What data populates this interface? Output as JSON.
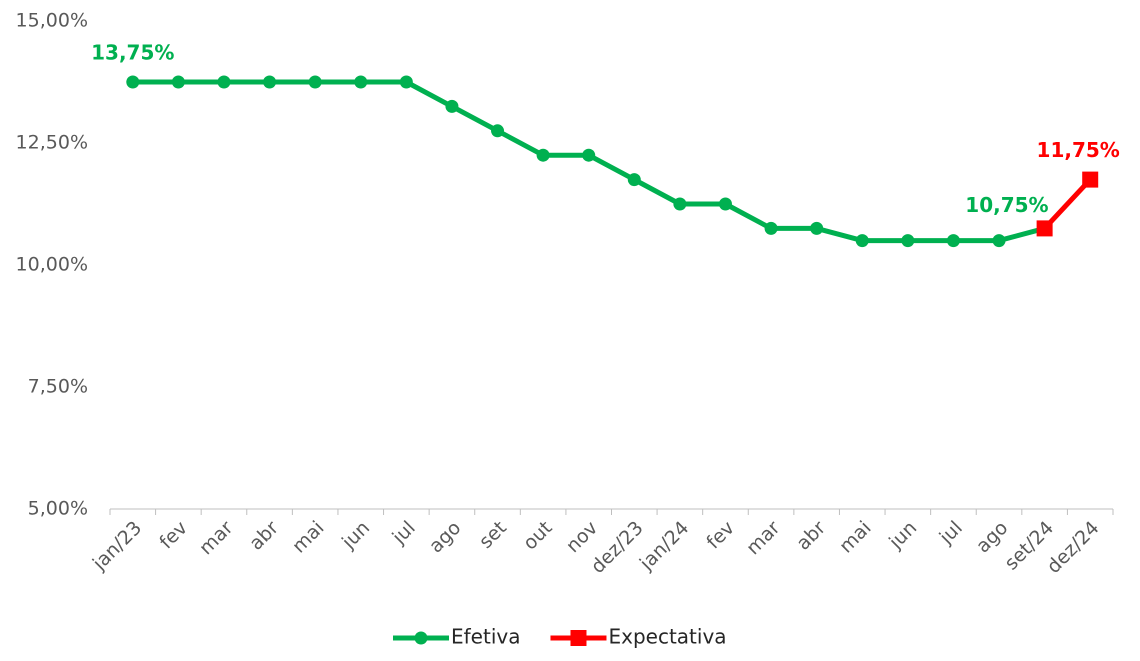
{
  "chart_data": {
    "type": "line",
    "categories": [
      "jan/23",
      "fev",
      "mar",
      "abr",
      "mai",
      "jun",
      "jul",
      "ago",
      "set",
      "out",
      "nov",
      "dez/23",
      "jan/24",
      "fev",
      "mar",
      "abr",
      "mai",
      "jun",
      "jul",
      "ago",
      "set/24",
      "dez/24"
    ],
    "series": [
      {
        "name": "Efetiva",
        "color": "#00b050",
        "marker": "circle",
        "values": [
          13.75,
          13.75,
          13.75,
          13.75,
          13.75,
          13.75,
          13.75,
          13.25,
          12.75,
          12.25,
          12.25,
          11.75,
          11.25,
          11.25,
          10.75,
          10.75,
          10.5,
          10.5,
          10.5,
          10.5,
          10.75,
          null
        ],
        "value_labels": [
          "13,75%",
          null,
          null,
          null,
          null,
          null,
          null,
          null,
          null,
          null,
          null,
          null,
          null,
          null,
          null,
          null,
          null,
          null,
          null,
          null,
          "10,75%",
          null
        ]
      },
      {
        "name": "Expectativa",
        "color": "#ff0000",
        "marker": "square",
        "values": [
          null,
          null,
          null,
          null,
          null,
          null,
          null,
          null,
          null,
          null,
          null,
          null,
          null,
          null,
          null,
          null,
          null,
          null,
          null,
          null,
          10.75,
          11.75
        ],
        "value_labels": [
          null,
          null,
          null,
          null,
          null,
          null,
          null,
          null,
          null,
          null,
          null,
          null,
          null,
          null,
          null,
          null,
          null,
          null,
          null,
          null,
          null,
          "11,75%"
        ]
      }
    ],
    "ylim": [
      5,
      15
    ],
    "yticks": [
      {
        "value": 5,
        "label": "5,00%"
      },
      {
        "value": 7.5,
        "label": "7,50%"
      },
      {
        "value": 10,
        "label": "10,00%"
      },
      {
        "value": 12.5,
        "label": "12,50%"
      },
      {
        "value": 15,
        "label": "15,00%"
      }
    ],
    "grid": false,
    "legend": "bottom"
  }
}
